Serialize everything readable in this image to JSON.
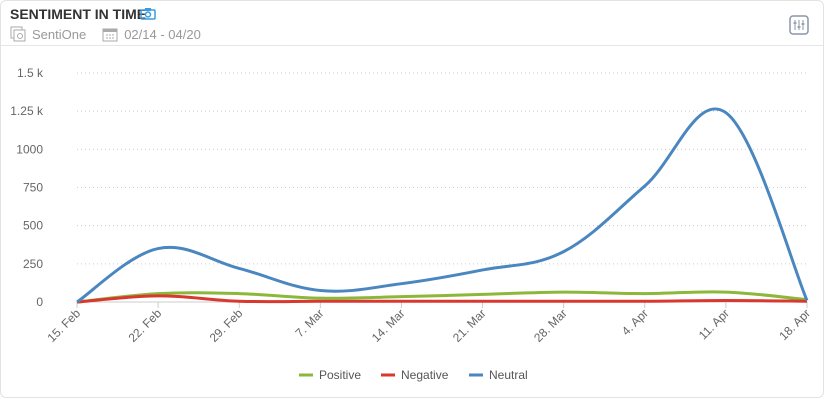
{
  "header": {
    "title": "SENTIMENT IN TIME",
    "source": "SentiOne",
    "date_range": "02/14 - 04/20"
  },
  "chart_data": {
    "type": "line",
    "title": "SENTIMENT IN TIME",
    "x": [
      "15. Feb",
      "22. Feb",
      "29. Feb",
      "7. Mar",
      "14. Mar",
      "21. Mar",
      "28. Mar",
      "4. Apr",
      "11. Apr",
      "18. Apr"
    ],
    "yticks": [
      {
        "v": 0,
        "label": "0"
      },
      {
        "v": 250,
        "label": "250"
      },
      {
        "v": 500,
        "label": "500"
      },
      {
        "v": 750,
        "label": "750"
      },
      {
        "v": 1000,
        "label": "1000"
      },
      {
        "v": 1250,
        "label": "1.25 k"
      },
      {
        "v": 1500,
        "label": "1.5 k"
      }
    ],
    "ylim": [
      0,
      1500
    ],
    "grid": true,
    "legend": "bottom-center",
    "series": [
      {
        "name": "Positive",
        "color": "#8bb83a",
        "values": [
          0,
          55,
          55,
          25,
          35,
          50,
          65,
          55,
          65,
          15
        ]
      },
      {
        "name": "Negative",
        "color": "#d9382f",
        "values": [
          0,
          40,
          5,
          5,
          5,
          5,
          5,
          5,
          10,
          5
        ]
      },
      {
        "name": "Neutral",
        "color": "#4a86c0",
        "values": [
          0,
          350,
          220,
          75,
          120,
          210,
          330,
          760,
          1240,
          10
        ]
      }
    ]
  }
}
